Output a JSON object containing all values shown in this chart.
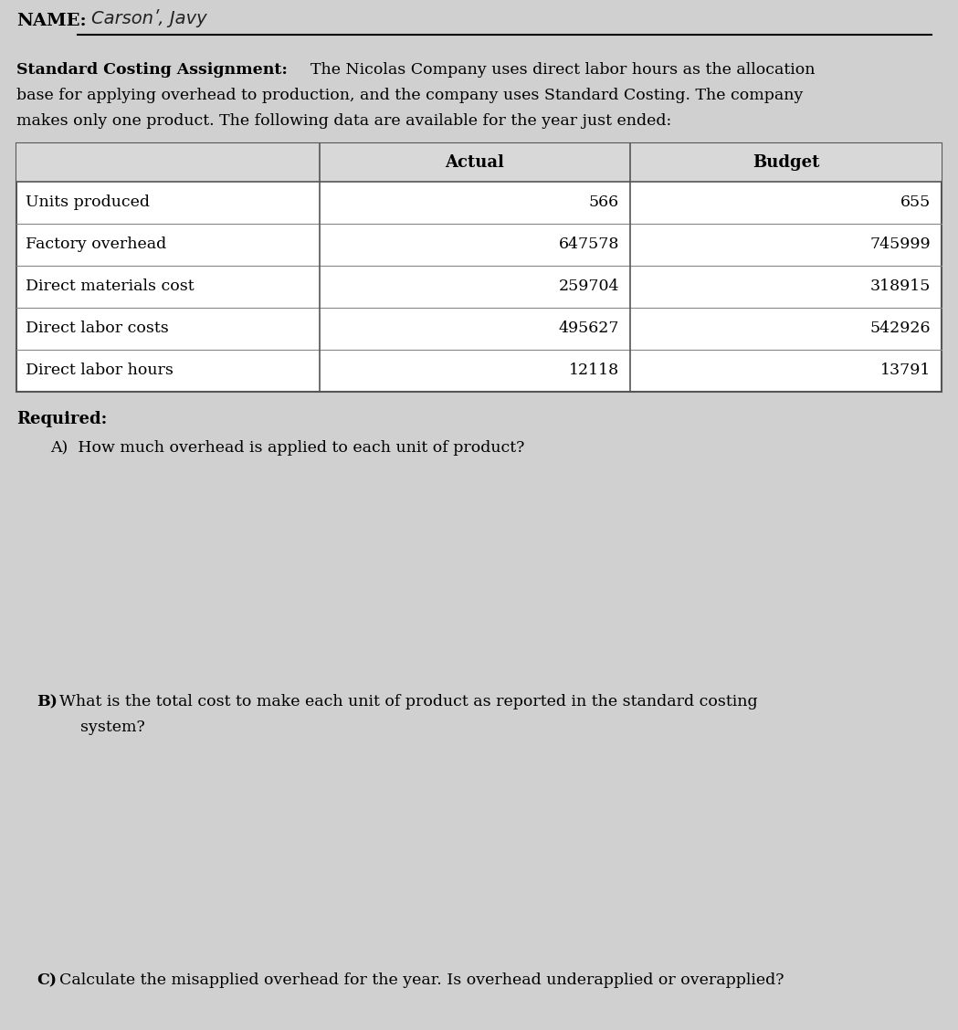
{
  "bg_color": "#d0d0d0",
  "name_label": "NAME:",
  "name_value": "Carsonʹ, Javy",
  "title_bold": "Standard Costing Assignment:",
  "intro_line1": "The Nicolas Company uses direct labor hours as the allocation",
  "intro_line2": "base for applying overhead to production, and the company uses Standard Costing. The company",
  "intro_line3": "makes only one product. The following data are available for the year just ended:",
  "table_headers": [
    "",
    "Actual",
    "Budget"
  ],
  "table_rows": [
    [
      "Units produced",
      "566",
      "655"
    ],
    [
      "Factory overhead",
      "647578",
      "745999"
    ],
    [
      "Direct materials cost",
      "259704",
      "318915"
    ],
    [
      "Direct labor costs",
      "495627",
      "542926"
    ],
    [
      "Direct labor hours",
      "12118",
      "13791"
    ]
  ],
  "required_label": "Required:",
  "question_a": "A)  How much overhead is applied to each unit of product?",
  "question_b_line1": "What is the total cost to make each unit of product as reported in the standard costing",
  "question_b_line2": "system?",
  "question_c": "Calculate the misapplied overhead for the year. Is overhead underapplied or overapplied?"
}
